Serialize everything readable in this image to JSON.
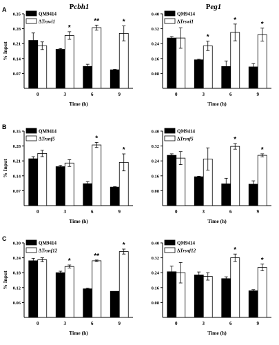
{
  "column_titles": [
    {
      "prefix": "P",
      "gene": "cbh1"
    },
    {
      "prefix": "P",
      "gene": "eg1"
    }
  ],
  "row_labels": [
    "A",
    "B",
    "C"
  ],
  "chart_data": [
    {
      "type": "bar",
      "row": 0,
      "col": 0,
      "xlabel": "Time (h)",
      "ylabel": "% Input",
      "categories": [
        "0",
        "3",
        "6",
        "9"
      ],
      "ylim": [
        0,
        0.35
      ],
      "yticks": [
        "0.07",
        "0.14",
        "0.21",
        "0.28",
        "0.35"
      ],
      "legend": "top-left",
      "series": [
        {
          "name": "QM9414",
          "color": "#000000",
          "values": [
            0.225,
            0.183,
            0.103,
            0.087
          ],
          "errors": [
            0.035,
            0.004,
            0.01,
            0.002
          ]
        },
        {
          "name": "ΔTrswi1",
          "color": "#ffffff",
          "values": [
            0.2,
            0.248,
            0.285,
            0.258
          ],
          "errors": [
            0.018,
            0.018,
            0.012,
            0.035
          ]
        }
      ],
      "annotations": [
        "",
        "*",
        "**",
        "*"
      ]
    },
    {
      "type": "bar",
      "row": 0,
      "col": 1,
      "xlabel": "Time (h)",
      "ylabel": "",
      "categories": [
        "0",
        "3",
        "6",
        "9"
      ],
      "ylim": [
        0,
        0.4
      ],
      "yticks": [
        "0.08",
        "0.16",
        "0.24",
        "0.32",
        "0.40"
      ],
      "legend": "top-left",
      "series": [
        {
          "name": "QM9414",
          "color": "#000000",
          "values": [
            0.27,
            0.153,
            0.117,
            0.115
          ],
          "errors": [
            0.008,
            0.003,
            0.03,
            0.018
          ]
        },
        {
          "name": "ΔTrswi1",
          "color": "#ffffff",
          "values": [
            0.27,
            0.228,
            0.3,
            0.288
          ],
          "errors": [
            0.055,
            0.025,
            0.045,
            0.035
          ]
        }
      ],
      "annotations": [
        "",
        "*",
        "*",
        "*"
      ]
    },
    {
      "type": "bar",
      "row": 1,
      "col": 0,
      "xlabel": "Time (h)",
      "ylabel": "% Input",
      "categories": [
        "0",
        "3",
        "6",
        "9"
      ],
      "ylim": [
        0,
        0.35
      ],
      "yticks": [
        "0.07",
        "0.14",
        "0.21",
        "0.28",
        "0.35"
      ],
      "legend": "top-left",
      "series": [
        {
          "name": "QM9414",
          "color": "#000000",
          "values": [
            0.22,
            0.183,
            0.103,
            0.087
          ],
          "errors": [
            0.01,
            0.006,
            0.01,
            0.002
          ]
        },
        {
          "name": "ΔTrsnf5",
          "color": "#ffffff",
          "values": [
            0.245,
            0.2,
            0.285,
            0.203
          ],
          "errors": [
            0.015,
            0.016,
            0.012,
            0.04
          ]
        }
      ],
      "annotations": [
        "",
        "",
        "*",
        "*"
      ]
    },
    {
      "type": "bar",
      "row": 1,
      "col": 1,
      "xlabel": "Time (h)",
      "ylabel": "",
      "categories": [
        "0",
        "3",
        "6",
        "9"
      ],
      "ylim": [
        0,
        0.4
      ],
      "yticks": [
        "0.08",
        "0.16",
        "0.24",
        "0.32",
        "0.40"
      ],
      "legend": "top-left",
      "series": [
        {
          "name": "QM9414",
          "color": "#000000",
          "values": [
            0.27,
            0.155,
            0.117,
            0.115
          ],
          "errors": [
            0.008,
            0.003,
            0.03,
            0.018
          ]
        },
        {
          "name": "ΔTrsnf5",
          "color": "#ffffff",
          "values": [
            0.255,
            0.25,
            0.318,
            0.27
          ],
          "errors": [
            0.035,
            0.06,
            0.015,
            0.008
          ]
        }
      ],
      "annotations": [
        "",
        "",
        "*",
        "*"
      ]
    },
    {
      "type": "bar",
      "row": 2,
      "col": 0,
      "xlabel": "Time (h)",
      "ylabel": "% Input",
      "categories": [
        "0",
        "3",
        "6",
        "9"
      ],
      "ylim": [
        0,
        0.3
      ],
      "yticks": [
        "0.06",
        "0.12",
        "0.18",
        "0.24",
        "0.30"
      ],
      "legend": "top-left",
      "series": [
        {
          "name": "QM9414",
          "color": "#000000",
          "values": [
            0.228,
            0.18,
            0.115,
            0.105
          ],
          "errors": [
            0.01,
            0.006,
            0.003,
            0.0
          ]
        },
        {
          "name": "ΔTrsnf12",
          "color": "#ffffff",
          "values": [
            0.232,
            0.205,
            0.228,
            0.265
          ],
          "errors": [
            0.008,
            0.006,
            0.003,
            0.01
          ]
        }
      ],
      "annotations": [
        "",
        "*",
        "**",
        "*"
      ]
    },
    {
      "type": "bar",
      "row": 2,
      "col": 1,
      "xlabel": "Time (h)",
      "ylabel": "",
      "categories": [
        "0",
        "3",
        "6",
        "9"
      ],
      "ylim": [
        0,
        0.4
      ],
      "yticks": [
        "0.08",
        "0.16",
        "0.24",
        "0.32",
        "0.40"
      ],
      "legend": "top-left",
      "series": [
        {
          "name": "QM9414",
          "color": "#000000",
          "values": [
            0.245,
            0.228,
            0.208,
            0.143
          ],
          "errors": [
            0.03,
            0.016,
            0.01,
            0.006
          ]
        },
        {
          "name": "ΔTrsnf12",
          "color": "#ffffff",
          "values": [
            0.24,
            0.22,
            0.32,
            0.268
          ],
          "errors": [
            0.055,
            0.02,
            0.02,
            0.018
          ]
        }
      ],
      "annotations": [
        "",
        "",
        "*",
        "*"
      ]
    }
  ]
}
